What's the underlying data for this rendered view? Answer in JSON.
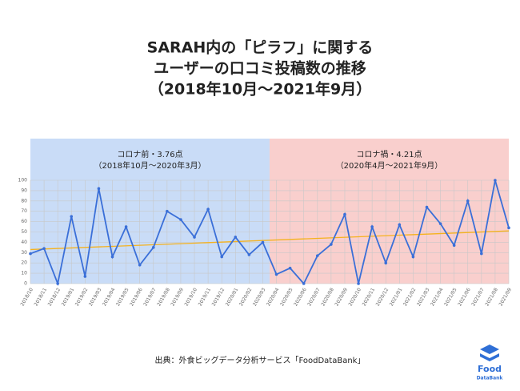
{
  "chart_data": {
    "type": "line",
    "title": [
      "SARAH内の「ピラフ」に関する",
      "ユーザーの口コミ投稿数の推移",
      "（2018年10月～2021年9月）"
    ],
    "source": "出典：外食ビッグデータ分析サービス「FoodDataBank」",
    "categories": [
      "2018/10",
      "2018/11",
      "2018/12",
      "2019/01",
      "2019/02",
      "2019/03",
      "2019/04",
      "2019/05",
      "2019/06",
      "2019/07",
      "2019/08",
      "2019/09",
      "2019/10",
      "2019/11",
      "2019/12",
      "2020/01",
      "2020/02",
      "2020/03",
      "2020/04",
      "2020/05",
      "2020/06",
      "2020/07",
      "2020/08",
      "2020/09",
      "2020/10",
      "2020/11",
      "2020/12",
      "2021/01",
      "2021/02",
      "2021/03",
      "2021/04",
      "2021/05",
      "2021/06",
      "2021/07",
      "2021/08",
      "2021/09"
    ],
    "series": [
      {
        "color": "#3a6fd8",
        "values": [
          29,
          34,
          0,
          65,
          7,
          92,
          26,
          55,
          18,
          35,
          70,
          62,
          45,
          72,
          26,
          45,
          28,
          40,
          9,
          15,
          0,
          27,
          38,
          67,
          0,
          55,
          20,
          57,
          26,
          74,
          58,
          37,
          80,
          29,
          100,
          54
        ]
      }
    ],
    "trendline": {
      "color": "#f5b21e",
      "values": [
        33,
        51
      ]
    },
    "regions": [
      {
        "from": "2018/10",
        "to": "2020/03",
        "color": "#c9dcf7",
        "label": [
          "コロナ前・3.76点",
          "（2018年10月～2020年3月）"
        ]
      },
      {
        "from": "2020/04",
        "to": "2021/09",
        "color": "#f9cfcd",
        "label": [
          "コロナ禍・4.21点",
          "（2020年4月～2021年9月）"
        ]
      }
    ],
    "ylim": [
      0,
      100
    ],
    "yticks": [
      0,
      10,
      20,
      30,
      40,
      50,
      60,
      70,
      80,
      90,
      100
    ],
    "grid": true
  },
  "logo": [
    "Food",
    "DataBank"
  ]
}
